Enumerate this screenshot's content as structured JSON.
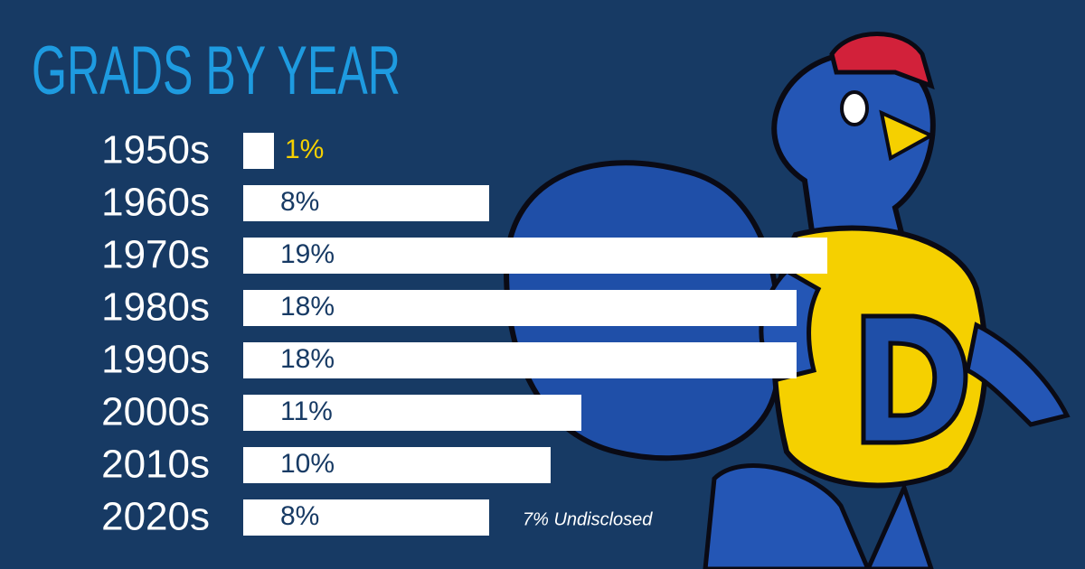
{
  "chart_data": {
    "type": "bar",
    "orientation": "horizontal",
    "title": "GRADS BY YEAR",
    "categories": [
      "1950s",
      "1960s",
      "1970s",
      "1980s",
      "1990s",
      "2000s",
      "2010s",
      "2020s"
    ],
    "values": [
      1,
      8,
      19,
      18,
      18,
      11,
      10,
      8
    ],
    "value_labels": [
      "1%",
      "8%",
      "19%",
      "18%",
      "18%",
      "11%",
      "10%",
      "8%"
    ],
    "color": "#ffffff",
    "annotation": "7% Undisclosed"
  }
}
